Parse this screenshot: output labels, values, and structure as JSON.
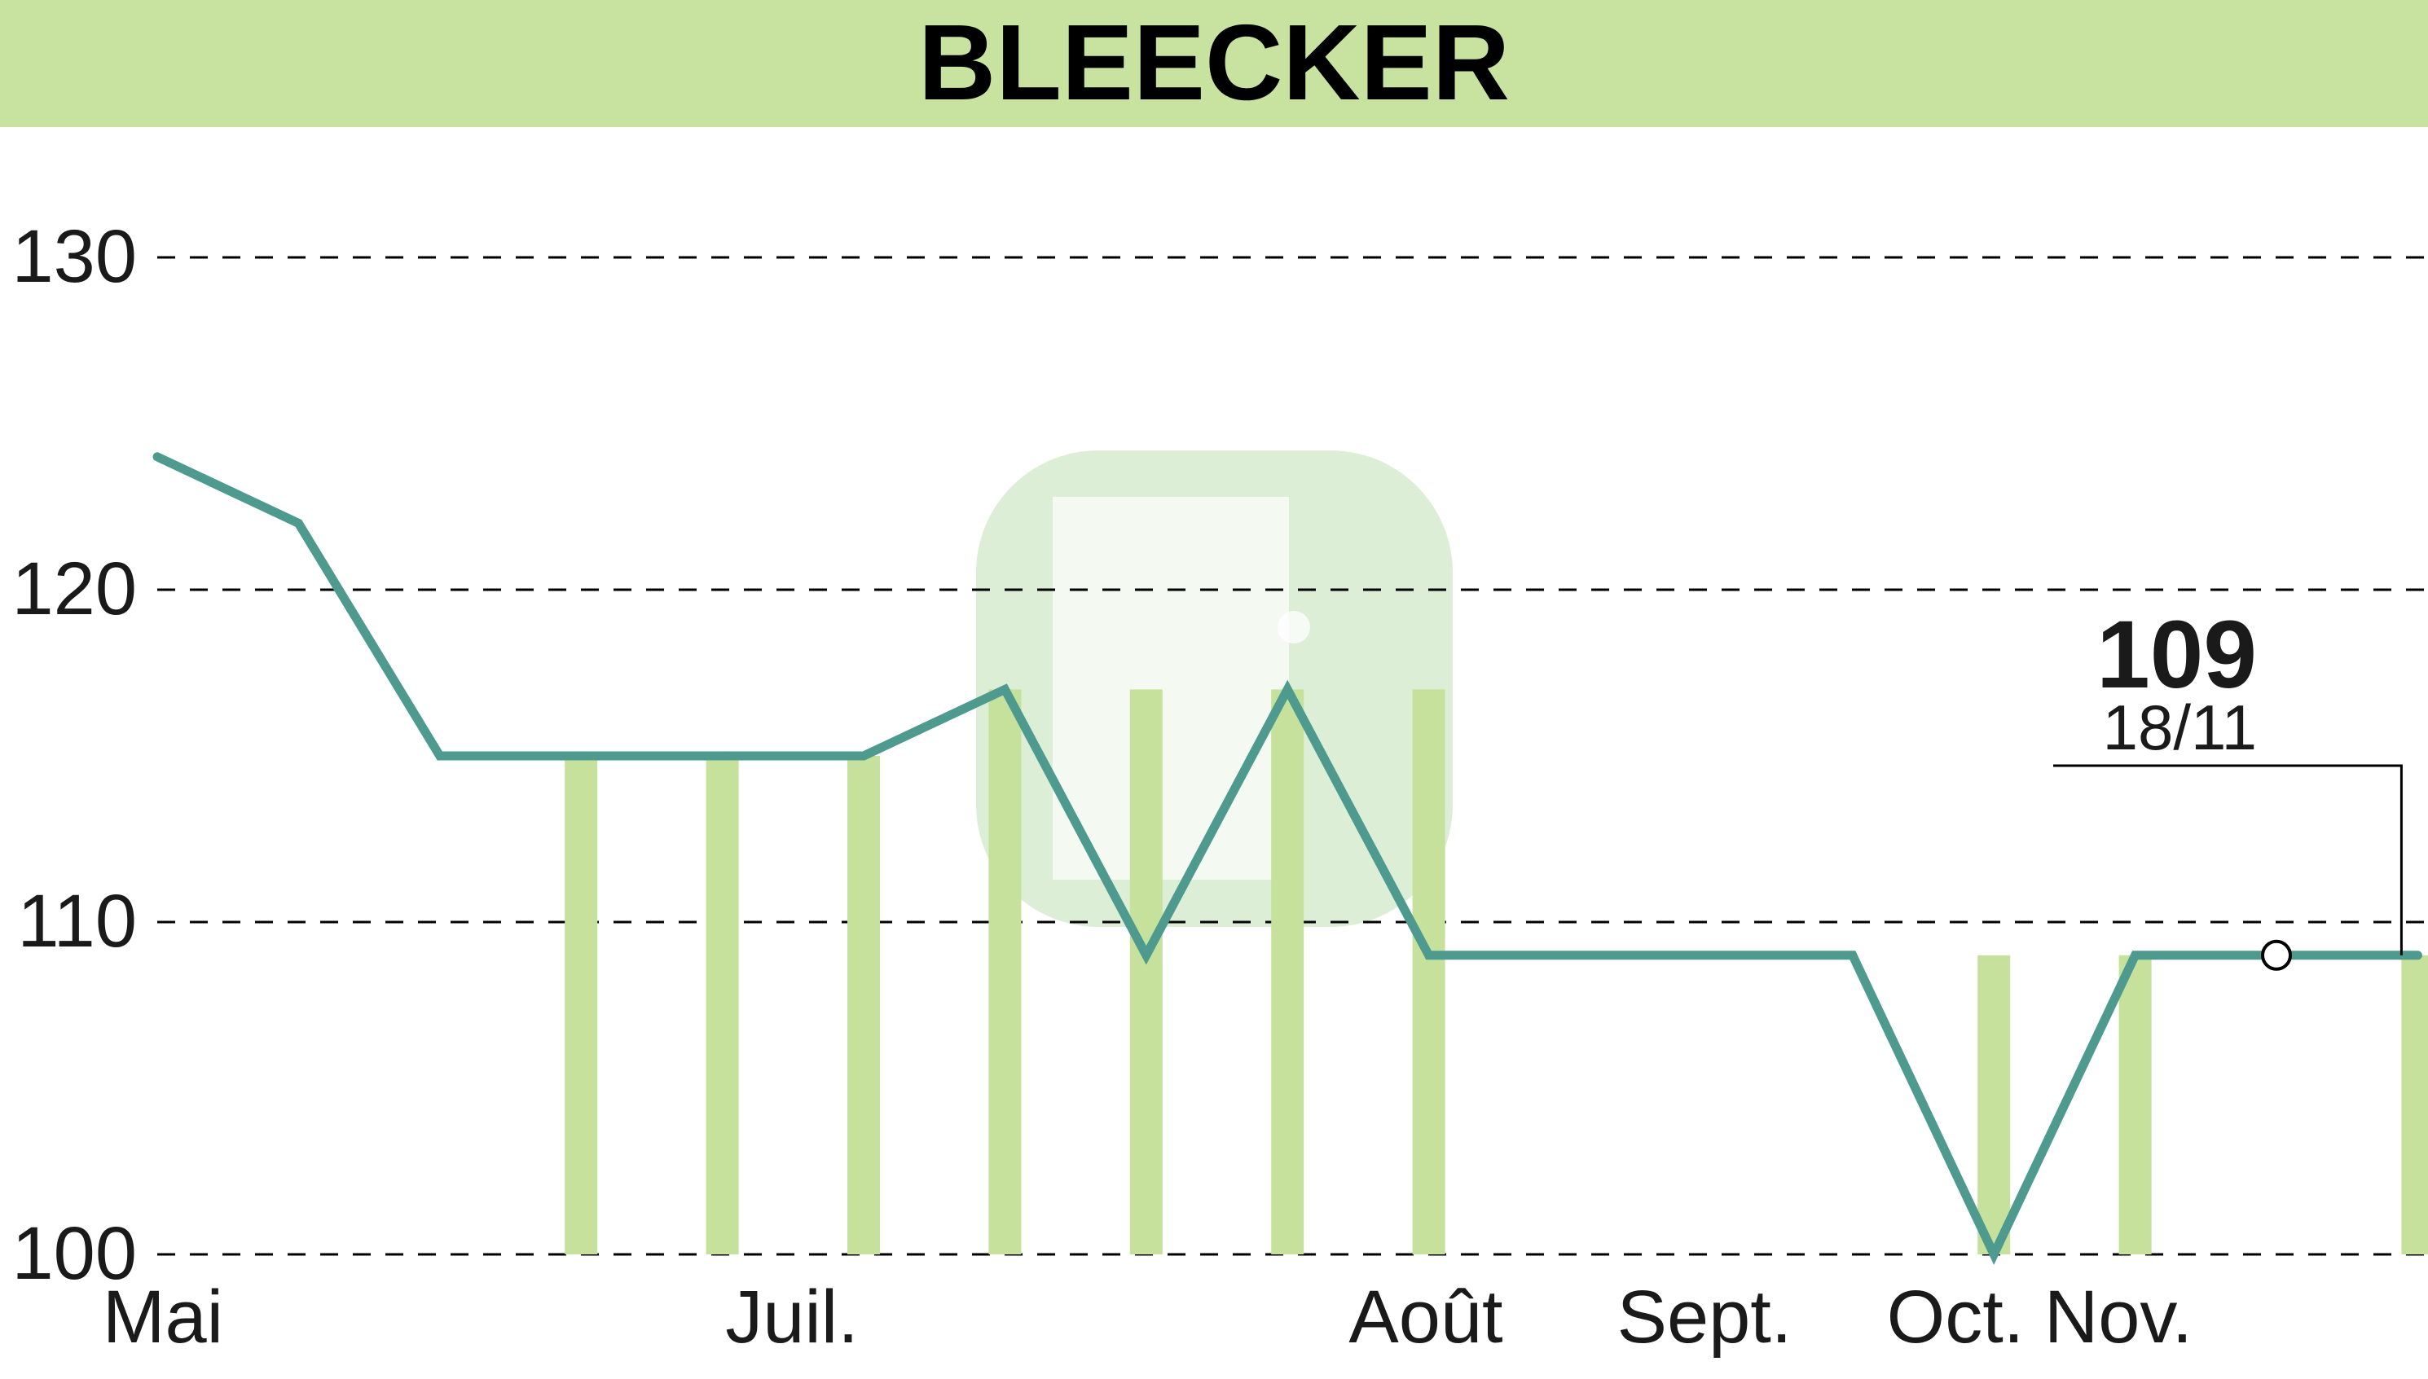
{
  "chart_data": {
    "type": "line",
    "title": "BLEECKER",
    "xlabel": "",
    "ylabel": "",
    "ylim": [
      100,
      130
    ],
    "grid": true,
    "y_ticks": [
      100,
      110,
      120,
      130
    ],
    "x_month_labels": [
      "Mai",
      "Juil.",
      "Août",
      "Sept.",
      "Oct.",
      "Nov."
    ],
    "series": [
      {
        "values": [
          124,
          122,
          115,
          115,
          115,
          115,
          117,
          109,
          117,
          109,
          109,
          109,
          109,
          100,
          109,
          109,
          109
        ]
      }
    ],
    "volume_bars": [
      {
        "index": 3,
        "value": 115
      },
      {
        "index": 4,
        "value": 115
      },
      {
        "index": 5,
        "value": 115
      },
      {
        "index": 6,
        "value": 117
      },
      {
        "index": 7,
        "value": 117
      },
      {
        "index": 8,
        "value": 117
      },
      {
        "index": 9,
        "value": 117
      },
      {
        "index": 13,
        "value": 109
      },
      {
        "index": 14,
        "value": 109
      },
      {
        "index": 16,
        "value": 109
      }
    ],
    "last_value": {
      "value": "109",
      "date": "18/11",
      "index": 15
    },
    "colors": {
      "title_band": "#c8e2a0",
      "line": "#4e9a8e",
      "bars": "#c5e19c",
      "grid": "#000000",
      "text": "#1a1a1a"
    }
  }
}
